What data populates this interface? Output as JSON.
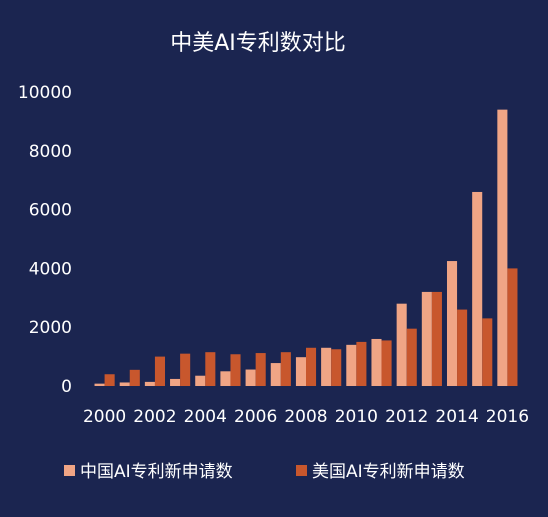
{
  "chart_data": {
    "type": "bar",
    "title": "中美AI专利数对比",
    "xlabel": "",
    "ylabel": "",
    "ylim": [
      0,
      10000
    ],
    "yticks": [
      0,
      2000,
      4000,
      6000,
      8000,
      10000
    ],
    "categories": [
      "2000",
      "2001",
      "2002",
      "2003",
      "2004",
      "2005",
      "2006",
      "2007",
      "2008",
      "2009",
      "2010",
      "2011",
      "2012",
      "2013",
      "2014",
      "2015",
      "2016"
    ],
    "x_tick_labels": [
      "2000",
      "2002",
      "2004",
      "2006",
      "2008",
      "2010",
      "2012",
      "2014",
      "2016"
    ],
    "series": [
      {
        "name": "中国AI专利新申请数",
        "color": "#f0a585",
        "values": [
          80,
          120,
          140,
          240,
          350,
          500,
          560,
          780,
          980,
          1300,
          1400,
          1600,
          2800,
          3200,
          4250,
          6600,
          9400
        ]
      },
      {
        "name": "美国AI专利新申请数",
        "color": "#c8572d",
        "values": [
          400,
          550,
          1000,
          1100,
          1150,
          1080,
          1120,
          1150,
          1300,
          1250,
          1500,
          1550,
          1950,
          3200,
          2600,
          2300,
          4000
        ]
      }
    ],
    "grid": false,
    "legend_position": "bottom"
  }
}
